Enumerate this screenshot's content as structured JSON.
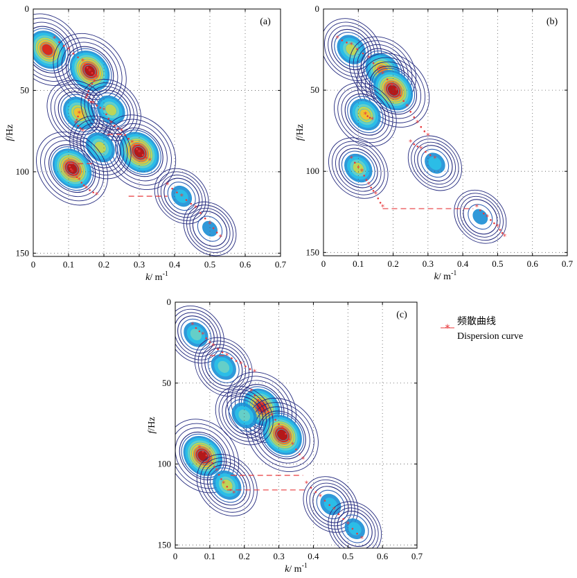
{
  "legend": {
    "label_cn": "频散曲线",
    "label_en": "Dispersion curve",
    "color": "#e8383b"
  },
  "chart_data": [
    {
      "type": "heatmap",
      "panel": "(a)",
      "xlabel_var": "k",
      "xlabel_unit": "/ m",
      "xlabel_exp": "-1",
      "ylabel_var": "f",
      "ylabel_unit": "/Hz",
      "xlim": [
        0,
        0.7
      ],
      "ylim": [
        0,
        152
      ],
      "y_reversed": true,
      "xticks": [
        "0",
        "0.1",
        "0.2",
        "0.3",
        "0.4",
        "0.5",
        "0.6",
        "0.7"
      ],
      "yticks": [
        "0",
        "50",
        "100",
        "150"
      ],
      "grid": "dotted",
      "energy_blobs": [
        {
          "k": 0.04,
          "f": 25,
          "amp": 0.9
        },
        {
          "k": 0.16,
          "f": 38,
          "amp": 1.0
        },
        {
          "k": 0.13,
          "f": 64,
          "amp": 0.7
        },
        {
          "k": 0.22,
          "f": 62,
          "amp": 0.55
        },
        {
          "k": 0.3,
          "f": 88,
          "amp": 1.0
        },
        {
          "k": 0.19,
          "f": 85,
          "amp": 0.6
        },
        {
          "k": 0.11,
          "f": 98,
          "amp": 0.95
        },
        {
          "k": 0.42,
          "f": 115,
          "amp": 0.35
        },
        {
          "k": 0.5,
          "f": 135,
          "amp": 0.3
        }
      ],
      "dispersion_curves": [
        [
          [
            0.06,
            18
          ],
          [
            0.1,
            25
          ],
          [
            0.14,
            32
          ],
          [
            0.16,
            38
          ],
          [
            0.18,
            42
          ],
          [
            0.16,
            48
          ],
          [
            0.15,
            55
          ],
          [
            0.17,
            58
          ],
          [
            0.2,
            62
          ],
          [
            0.22,
            70
          ],
          [
            0.25,
            75
          ],
          [
            0.28,
            82
          ],
          [
            0.3,
            88
          ],
          [
            0.33,
            93
          ]
        ],
        [
          [
            0.13,
            64
          ],
          [
            0.12,
            70
          ],
          [
            0.14,
            75
          ]
        ],
        [
          [
            0.1,
            95
          ],
          [
            0.11,
            100
          ],
          [
            0.13,
            105
          ],
          [
            0.15,
            110
          ],
          [
            0.18,
            114
          ]
        ],
        [
          [
            0.38,
            108
          ],
          [
            0.42,
            115
          ],
          [
            0.46,
            122
          ],
          [
            0.5,
            132
          ],
          [
            0.53,
            140
          ]
        ]
      ],
      "dashed_segments": [
        [
          [
            0.1,
            95
          ],
          [
            0.17,
            95
          ]
        ],
        [
          [
            0.21,
            77
          ],
          [
            0.26,
            77
          ]
        ],
        [
          [
            0.27,
            115
          ],
          [
            0.38,
            115
          ]
        ]
      ]
    },
    {
      "type": "heatmap",
      "panel": "(b)",
      "xlabel_var": "k",
      "xlabel_unit": "/ m",
      "xlabel_exp": "-1",
      "ylabel_var": "f",
      "ylabel_unit": "/Hz",
      "xlim": [
        0,
        0.7
      ],
      "ylim": [
        0,
        152
      ],
      "y_reversed": true,
      "xticks": [
        "0",
        "0.1",
        "0.2",
        "0.3",
        "0.4",
        "0.5",
        "0.6",
        "0.7"
      ],
      "yticks": [
        "0",
        "50",
        "100",
        "150"
      ],
      "grid": "dotted",
      "energy_blobs": [
        {
          "k": 0.08,
          "f": 25,
          "amp": 0.6
        },
        {
          "k": 0.17,
          "f": 38,
          "amp": 0.8
        },
        {
          "k": 0.2,
          "f": 50,
          "amp": 1.0
        },
        {
          "k": 0.12,
          "f": 65,
          "amp": 0.65
        },
        {
          "k": 0.1,
          "f": 98,
          "amp": 0.55
        },
        {
          "k": 0.32,
          "f": 95,
          "amp": 0.35
        },
        {
          "k": 0.45,
          "f": 128,
          "amp": 0.3
        }
      ],
      "dispersion_curves": [
        [
          [
            0.04,
            18
          ],
          [
            0.08,
            22
          ],
          [
            0.13,
            30
          ],
          [
            0.17,
            40
          ],
          [
            0.21,
            50
          ],
          [
            0.24,
            60
          ],
          [
            0.27,
            70
          ],
          [
            0.3,
            78
          ]
        ],
        [
          [
            0.12,
            65
          ],
          [
            0.14,
            68
          ]
        ],
        [
          [
            0.25,
            82
          ],
          [
            0.28,
            86
          ],
          [
            0.32,
            92
          ]
        ],
        [
          [
            0.08,
            92
          ],
          [
            0.11,
            100
          ],
          [
            0.13,
            108
          ],
          [
            0.15,
            114
          ],
          [
            0.17,
            122
          ]
        ],
        [
          [
            0.44,
            122
          ],
          [
            0.47,
            128
          ],
          [
            0.5,
            134
          ],
          [
            0.52,
            140
          ]
        ]
      ],
      "dashed_segments": [
        [
          [
            0.17,
            123
          ],
          [
            0.43,
            123
          ]
        ]
      ]
    },
    {
      "type": "heatmap",
      "panel": "(c)",
      "xlabel_var": "k",
      "xlabel_unit": "/ m",
      "xlabel_exp": "-1",
      "ylabel_var": "f",
      "ylabel_unit": "/Hz",
      "xlim": [
        0,
        0.7
      ],
      "ylim": [
        0,
        152
      ],
      "y_reversed": true,
      "xticks": [
        "0",
        "0.1",
        "0.2",
        "0.3",
        "0.4",
        "0.5",
        "0.6",
        "0.7"
      ],
      "yticks": [
        "0",
        "50",
        "100",
        "150"
      ],
      "grid": "dotted",
      "energy_blobs": [
        {
          "k": 0.06,
          "f": 20,
          "amp": 0.45
        },
        {
          "k": 0.14,
          "f": 40,
          "amp": 0.5
        },
        {
          "k": 0.25,
          "f": 65,
          "amp": 0.9
        },
        {
          "k": 0.31,
          "f": 82,
          "amp": 1.0
        },
        {
          "k": 0.2,
          "f": 70,
          "amp": 0.5
        },
        {
          "k": 0.08,
          "f": 95,
          "amp": 1.0
        },
        {
          "k": 0.15,
          "f": 113,
          "amp": 0.6
        },
        {
          "k": 0.45,
          "f": 125,
          "amp": 0.4
        },
        {
          "k": 0.52,
          "f": 140,
          "amp": 0.35
        }
      ],
      "dispersion_curves": [
        [
          [
            0.05,
            14
          ],
          [
            0.08,
            20
          ],
          [
            0.11,
            27
          ],
          [
            0.15,
            33
          ],
          [
            0.19,
            38
          ],
          [
            0.23,
            43
          ]
        ],
        [
          [
            0.22,
            55
          ],
          [
            0.25,
            63
          ],
          [
            0.28,
            70
          ],
          [
            0.31,
            78
          ],
          [
            0.34,
            88
          ],
          [
            0.37,
            97
          ]
        ],
        [
          [
            0.07,
            90
          ],
          [
            0.1,
            97
          ],
          [
            0.12,
            104
          ],
          [
            0.14,
            112
          ],
          [
            0.17,
            118
          ]
        ],
        [
          [
            0.38,
            112
          ],
          [
            0.42,
            120
          ],
          [
            0.46,
            128
          ],
          [
            0.5,
            137
          ],
          [
            0.54,
            146
          ]
        ]
      ],
      "dashed_segments": [
        [
          [
            0.1,
            33
          ],
          [
            0.15,
            33
          ]
        ],
        [
          [
            0.16,
            107
          ],
          [
            0.37,
            107
          ]
        ],
        [
          [
            0.15,
            116
          ],
          [
            0.38,
            116
          ]
        ]
      ]
    }
  ]
}
